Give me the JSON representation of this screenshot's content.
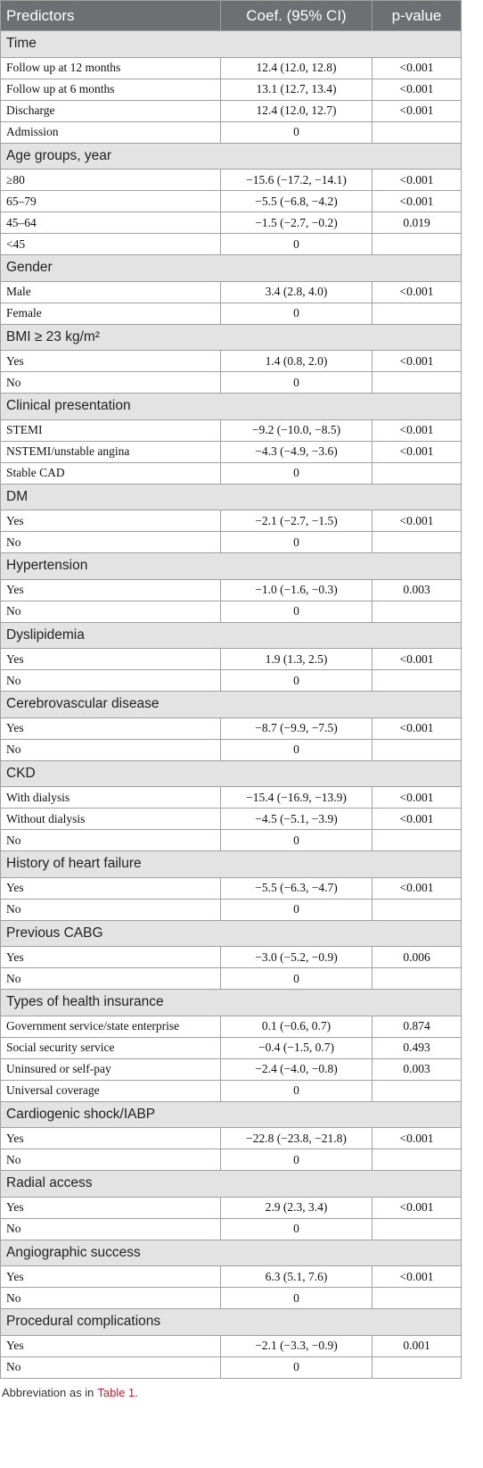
{
  "table": {
    "header": [
      "Predictors",
      "Coef. (95% CI)",
      "p-value"
    ],
    "sections": [
      {
        "title": "Time",
        "rows": [
          [
            "Follow up at 12 months",
            "12.4 (12.0, 12.8)",
            "<0.001"
          ],
          [
            "Follow up at 6 months",
            "13.1 (12.7, 13.4)",
            "<0.001"
          ],
          [
            "Discharge",
            "12.4 (12.0, 12.7)",
            "<0.001"
          ],
          [
            "Admission",
            "0"
          ]
        ]
      },
      {
        "title": "Age groups, year",
        "rows": [
          [
            "≥80",
            "−15.6 (−17.2, −14.1)",
            "<0.001"
          ],
          [
            "65–79",
            "−5.5 (−6.8, −4.2)",
            "<0.001"
          ],
          [
            "45–64",
            "−1.5 (−2.7, −0.2)",
            "0.019"
          ],
          [
            "<45",
            "0"
          ]
        ]
      },
      {
        "title": "Gender",
        "rows": [
          [
            "Male",
            "3.4 (2.8, 4.0)",
            "<0.001"
          ],
          [
            "Female",
            "0"
          ]
        ]
      },
      {
        "title": "BMI ≥ 23 kg/m²",
        "rows": [
          [
            "Yes",
            "1.4 (0.8, 2.0)",
            "<0.001"
          ],
          [
            "No",
            "0"
          ]
        ]
      },
      {
        "title": "Clinical presentation",
        "rows": [
          [
            "STEMI",
            "−9.2 (−10.0, −8.5)",
            "<0.001"
          ],
          [
            "NSTEMI/unstable angina",
            "−4.3 (−4.9, −3.6)",
            "<0.001"
          ],
          [
            "Stable CAD",
            "0"
          ]
        ]
      },
      {
        "title": "DM",
        "rows": [
          [
            "Yes",
            "−2.1 (−2.7, −1.5)",
            "<0.001"
          ],
          [
            "No",
            "0"
          ]
        ]
      },
      {
        "title": "Hypertension",
        "rows": [
          [
            "Yes",
            "−1.0 (−1.6, −0.3)",
            "0.003"
          ],
          [
            "No",
            "0"
          ]
        ]
      },
      {
        "title": "Dyslipidemia",
        "rows": [
          [
            "Yes",
            "1.9 (1.3, 2.5)",
            "<0.001"
          ],
          [
            "No",
            "0"
          ]
        ]
      },
      {
        "title": "Cerebrovascular disease",
        "rows": [
          [
            "Yes",
            "−8.7 (−9.9, −7.5)",
            "<0.001"
          ],
          [
            "No",
            "0"
          ]
        ]
      },
      {
        "title": "CKD",
        "rows": [
          [
            "With dialysis",
            "−15.4 (−16.9, −13.9)",
            "<0.001"
          ],
          [
            "Without dialysis",
            "−4.5 (−5.1, −3.9)",
            "<0.001"
          ],
          [
            "No",
            "0"
          ]
        ]
      },
      {
        "title": "History of heart failure",
        "rows": [
          [
            "Yes",
            "−5.5 (−6.3, −4.7)",
            "<0.001"
          ],
          [
            "No",
            "0"
          ]
        ]
      },
      {
        "title": "Previous CABG",
        "rows": [
          [
            "Yes",
            "−3.0 (−5.2, −0.9)",
            "0.006"
          ],
          [
            "No",
            "0"
          ]
        ]
      },
      {
        "title": "Types of health insurance",
        "rows": [
          [
            "Government service/state enterprise",
            "0.1 (−0.6, 0.7)",
            "0.874"
          ],
          [
            "Social security service",
            "−0.4 (−1.5, 0.7)",
            "0.493"
          ],
          [
            "Uninsured or self-pay",
            "−2.4 (−4.0, −0.8)",
            "0.003"
          ],
          [
            "Universal coverage",
            "0"
          ]
        ]
      },
      {
        "title": "Cardiogenic shock/IABP",
        "rows": [
          [
            "Yes",
            "−22.8 (−23.8, −21.8)",
            "<0.001"
          ],
          [
            "No",
            "0"
          ]
        ]
      },
      {
        "title": "Radial access",
        "rows": [
          [
            "Yes",
            "2.9 (2.3, 3.4)",
            "<0.001"
          ],
          [
            "No",
            "0"
          ]
        ]
      },
      {
        "title": "Angiographic success",
        "rows": [
          [
            "Yes",
            "6.3 (5.1, 7.6)",
            "<0.001"
          ],
          [
            "No",
            "0"
          ]
        ]
      },
      {
        "title": "Procedural complications",
        "rows": [
          [
            "Yes",
            "−2.1 (−3.3, −0.9)",
            "0.001"
          ],
          [
            "No",
            "0"
          ]
        ]
      }
    ]
  },
  "footer": {
    "text": "Abbreviation as in",
    "link": "Table 1",
    "end": "."
  }
}
